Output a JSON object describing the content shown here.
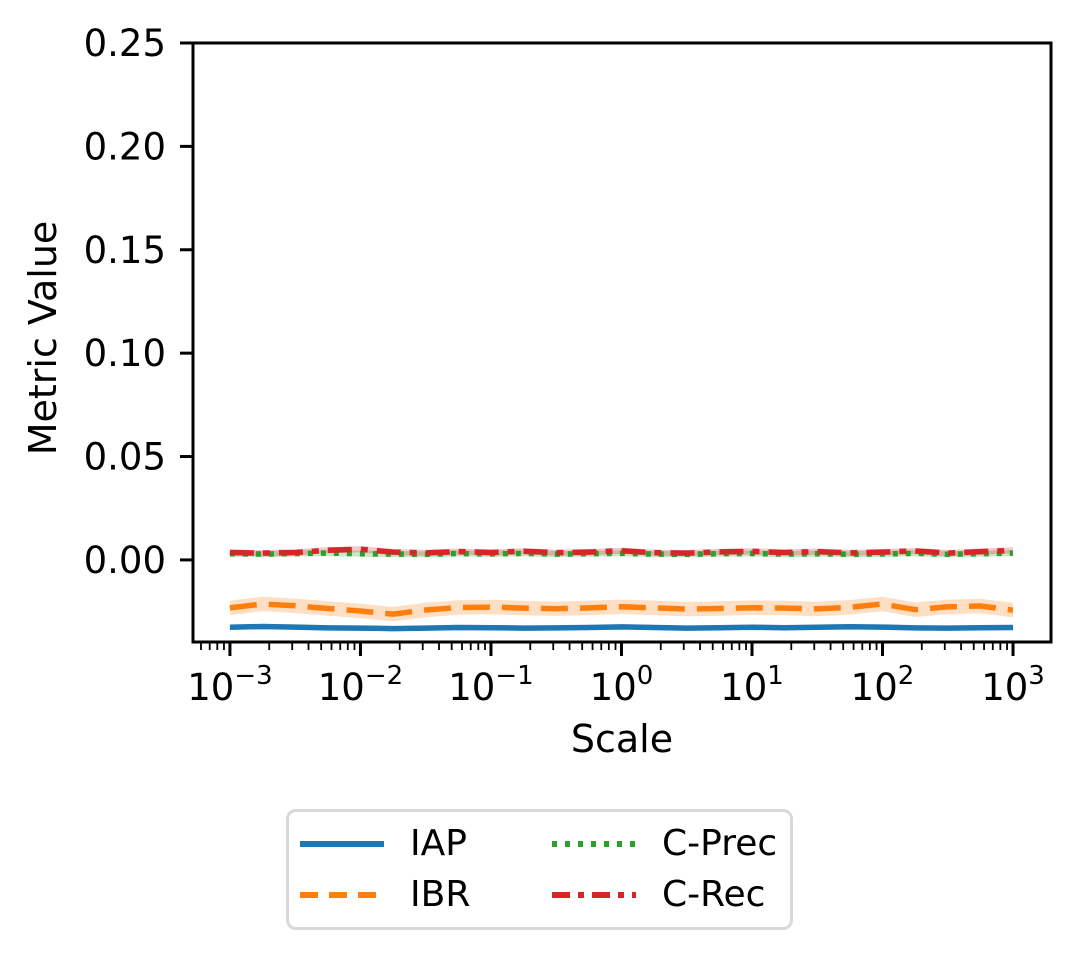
{
  "chart_data": {
    "type": "line",
    "title": "",
    "xlabel": "Scale",
    "ylabel": "Metric Value",
    "x_scale": "log",
    "xlim_log10": [
      -3.283,
      3.291
    ],
    "ylim": [
      -0.0397,
      0.25
    ],
    "grid": false,
    "y_ticks": {
      "values": [
        0.0,
        0.05,
        0.1,
        0.15,
        0.2,
        0.25
      ],
      "labels": [
        "0.00",
        "0.05",
        "0.10",
        "0.15",
        "0.20",
        "0.25"
      ]
    },
    "x_ticks": {
      "base": "10",
      "exponents": [
        -3,
        -2,
        -1,
        0,
        1,
        2,
        3
      ],
      "exponent_labels": [
        "−3",
        "−2",
        "−1",
        "0",
        "1",
        "2",
        "3"
      ]
    },
    "x_log10": [
      -3,
      -2.75,
      -2.5,
      -2.25,
      -2,
      -1.75,
      -1.5,
      -1.25,
      -1,
      -0.75,
      -0.5,
      -0.25,
      0,
      0.25,
      0.5,
      0.75,
      1,
      1.25,
      1.5,
      1.75,
      2,
      2.25,
      2.5,
      2.75,
      3
    ],
    "series": [
      {
        "name": "IAP",
        "color": "#1f77b4",
        "style": "solid",
        "band_halfwidth": 0.0012,
        "values": [
          -0.0326,
          -0.0322,
          -0.0325,
          -0.0329,
          -0.033,
          -0.0332,
          -0.033,
          -0.0327,
          -0.0328,
          -0.033,
          -0.0329,
          -0.0327,
          -0.0324,
          -0.0327,
          -0.033,
          -0.0328,
          -0.0326,
          -0.0328,
          -0.0326,
          -0.0323,
          -0.0325,
          -0.0329,
          -0.033,
          -0.0328,
          -0.0327
        ]
      },
      {
        "name": "IBR",
        "color": "#ff7f0e",
        "style": "dashed",
        "band_halfwidth": 0.0035,
        "values": [
          -0.0232,
          -0.0213,
          -0.0222,
          -0.0235,
          -0.0247,
          -0.0262,
          -0.0242,
          -0.023,
          -0.0228,
          -0.0233,
          -0.0236,
          -0.0232,
          -0.0227,
          -0.0232,
          -0.0238,
          -0.0235,
          -0.0231,
          -0.0233,
          -0.0237,
          -0.0229,
          -0.0213,
          -0.0241,
          -0.0227,
          -0.0223,
          -0.0243
        ]
      },
      {
        "name": "C-Prec",
        "color": "#2ca02c",
        "style": "dotted",
        "band_halfwidth": 0.0015,
        "values": [
          0.003,
          0.0028,
          0.0031,
          0.0033,
          0.003,
          0.0028,
          0.0027,
          0.0031,
          0.0029,
          0.0032,
          0.0028,
          0.003,
          0.0032,
          0.0028,
          0.0027,
          0.003,
          0.0031,
          0.0028,
          0.003,
          0.0027,
          0.0029,
          0.0032,
          0.0027,
          0.003,
          0.0033
        ]
      },
      {
        "name": "C-Rec",
        "color": "#d62728",
        "style": "dashdot",
        "band_halfwidth": 0.0015,
        "values": [
          0.0036,
          0.0033,
          0.0036,
          0.0047,
          0.0052,
          0.0038,
          0.0034,
          0.004,
          0.0036,
          0.0042,
          0.0035,
          0.0038,
          0.0044,
          0.0035,
          0.0033,
          0.0039,
          0.0041,
          0.0036,
          0.004,
          0.0034,
          0.0038,
          0.0043,
          0.0033,
          0.004,
          0.0046
        ]
      }
    ],
    "legend": {
      "position": "below-chart",
      "columns": 2,
      "order": "column-major",
      "entries": [
        "IAP",
        "IBR",
        "C-Prec",
        "C-Rec"
      ]
    },
    "colors": {
      "axes": "#000000",
      "background": "#ffffff",
      "legend_border": "#d9d9d9"
    }
  }
}
